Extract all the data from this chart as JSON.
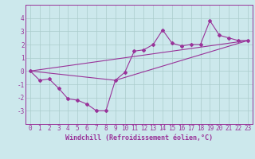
{
  "title": "",
  "xlabel": "Windchill (Refroidissement éolien,°C)",
  "xlim": [
    -0.5,
    23.5
  ],
  "ylim": [
    -4.0,
    5.0
  ],
  "yticks": [
    -3,
    -2,
    -1,
    0,
    1,
    2,
    3,
    4
  ],
  "xticks": [
    0,
    1,
    2,
    3,
    4,
    5,
    6,
    7,
    8,
    9,
    10,
    11,
    12,
    13,
    14,
    15,
    16,
    17,
    18,
    19,
    20,
    21,
    22,
    23
  ],
  "bg_color": "#cce8ec",
  "grid_color": "#aacccc",
  "line_color": "#993399",
  "line1_x": [
    0,
    1,
    2,
    3,
    4,
    5,
    6,
    7,
    8,
    9,
    10,
    11,
    12,
    13,
    14,
    15,
    16,
    17,
    18,
    19,
    20,
    21,
    22,
    23
  ],
  "line1_y": [
    0,
    -0.7,
    -0.6,
    -1.3,
    -2.1,
    -2.2,
    -2.5,
    -3.0,
    -3.0,
    -0.7,
    -0.1,
    1.5,
    1.6,
    2.0,
    3.1,
    2.1,
    1.9,
    2.0,
    2.0,
    3.8,
    2.7,
    2.5,
    2.3,
    2.3
  ],
  "line2_x": [
    0,
    23
  ],
  "line2_y": [
    0,
    2.3
  ],
  "line3_x": [
    0,
    9,
    23
  ],
  "line3_y": [
    0,
    -0.7,
    2.3
  ],
  "marker_style": "D",
  "marker_size": 2.0,
  "line_width": 0.8,
  "tick_fontsize": 5.5,
  "xlabel_fontsize": 6.0
}
